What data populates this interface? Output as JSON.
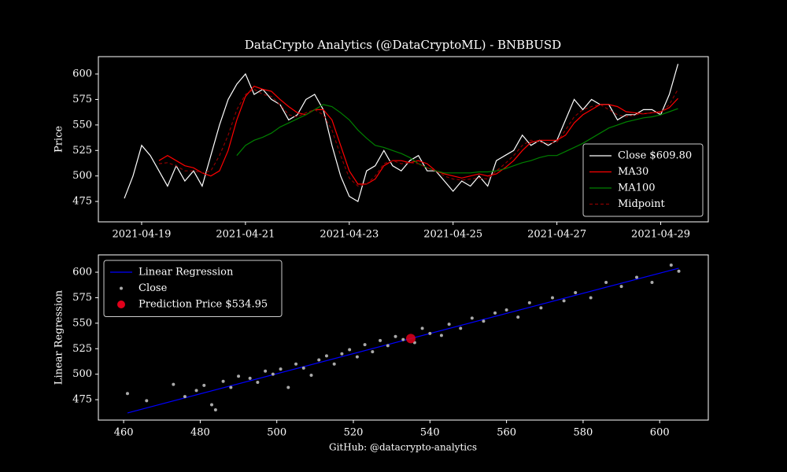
{
  "chart_data": [
    {
      "type": "line",
      "title": "DataCrypto Analytics (@DataCryptoML) - BNBBUSD",
      "y_label": "Price",
      "x": [
        "2021-04-18 16:00",
        "2021-04-18 20:00",
        "2021-04-19 00:00",
        "2021-04-19 04:00",
        "2021-04-19 08:00",
        "2021-04-19 12:00",
        "2021-04-19 16:00",
        "2021-04-19 20:00",
        "2021-04-20 00:00",
        "2021-04-20 04:00",
        "2021-04-20 08:00",
        "2021-04-20 12:00",
        "2021-04-20 16:00",
        "2021-04-20 20:00",
        "2021-04-21 00:00",
        "2021-04-21 04:00",
        "2021-04-21 08:00",
        "2021-04-21 12:00",
        "2021-04-21 16:00",
        "2021-04-21 20:00",
        "2021-04-22 00:00",
        "2021-04-22 04:00",
        "2021-04-22 08:00",
        "2021-04-22 12:00",
        "2021-04-22 16:00",
        "2021-04-22 20:00",
        "2021-04-23 00:00",
        "2021-04-23 04:00",
        "2021-04-23 08:00",
        "2021-04-23 12:00",
        "2021-04-23 16:00",
        "2021-04-23 20:00",
        "2021-04-24 00:00",
        "2021-04-24 04:00",
        "2021-04-24 08:00",
        "2021-04-24 12:00",
        "2021-04-24 16:00",
        "2021-04-24 20:00",
        "2021-04-25 00:00",
        "2021-04-25 04:00",
        "2021-04-25 08:00",
        "2021-04-25 12:00",
        "2021-04-25 16:00",
        "2021-04-25 20:00",
        "2021-04-26 00:00",
        "2021-04-26 04:00",
        "2021-04-26 08:00",
        "2021-04-26 12:00",
        "2021-04-26 16:00",
        "2021-04-26 20:00",
        "2021-04-27 00:00",
        "2021-04-27 04:00",
        "2021-04-27 08:00",
        "2021-04-27 12:00",
        "2021-04-27 16:00",
        "2021-04-27 20:00",
        "2021-04-28 00:00",
        "2021-04-28 04:00",
        "2021-04-28 08:00",
        "2021-04-28 12:00",
        "2021-04-28 16:00",
        "2021-04-28 20:00",
        "2021-04-29 00:00",
        "2021-04-29 04:00",
        "2021-04-29 08:00"
      ],
      "series": [
        {
          "name": "Close $609.80",
          "color": "#ffffff",
          "values": [
            478,
            500,
            530,
            520,
            505,
            490,
            510,
            495,
            505,
            490,
            520,
            550,
            575,
            590,
            600,
            580,
            585,
            575,
            570,
            555,
            560,
            575,
            580,
            565,
            530,
            500,
            480,
            475,
            505,
            510,
            525,
            510,
            505,
            515,
            520,
            505,
            505,
            495,
            485,
            495,
            490,
            500,
            490,
            515,
            520,
            525,
            540,
            530,
            535,
            530,
            535,
            555,
            575,
            565,
            575,
            570,
            570,
            555,
            560,
            560,
            565,
            565,
            560,
            580,
            609.8
          ]
        },
        {
          "name": "MA30",
          "color": "#ff0000",
          "values": [
            null,
            null,
            null,
            null,
            515,
            520,
            515,
            510,
            508,
            503,
            500,
            505,
            525,
            555,
            578,
            588,
            585,
            583,
            575,
            568,
            562,
            560,
            565,
            565,
            555,
            530,
            505,
            492,
            492,
            497,
            510,
            515,
            515,
            513,
            515,
            512,
            505,
            502,
            500,
            498,
            500,
            502,
            500,
            502,
            508,
            515,
            525,
            533,
            535,
            535,
            535,
            540,
            552,
            560,
            565,
            570,
            570,
            568,
            563,
            562,
            561,
            562,
            563,
            567,
            576
          ]
        },
        {
          "name": "MA100",
          "color": "#008000",
          "values": [
            null,
            null,
            null,
            null,
            null,
            null,
            null,
            null,
            null,
            null,
            null,
            null,
            null,
            520,
            530,
            535,
            538,
            542,
            548,
            552,
            556,
            560,
            565,
            570,
            568,
            562,
            555,
            545,
            537,
            530,
            528,
            525,
            522,
            518,
            512,
            508,
            505,
            503,
            503,
            503,
            503,
            504,
            504,
            505,
            507,
            510,
            513,
            515,
            518,
            520,
            520,
            524,
            528,
            532,
            537,
            542,
            547,
            550,
            553,
            555,
            557,
            558,
            560,
            563,
            566
          ]
        },
        {
          "name": "Midpoint",
          "color": "#8b0000",
          "dashed": true,
          "values": [
            null,
            null,
            null,
            null,
            512,
            513,
            510,
            505,
            505,
            503,
            505,
            520,
            540,
            565,
            580,
            585,
            580,
            578,
            570,
            560,
            558,
            562,
            565,
            560,
            545,
            520,
            498,
            490,
            492,
            500,
            512,
            515,
            512,
            513,
            512,
            508,
            505,
            500,
            497,
            496,
            497,
            498,
            497,
            505,
            512,
            520,
            530,
            535,
            533,
            532,
            533,
            545,
            558,
            565,
            568,
            570,
            565,
            560,
            558,
            560,
            561,
            562,
            562,
            570,
            585
          ]
        }
      ],
      "xlim": [
        "2021-04-18 04:00",
        "2021-04-29 22:00"
      ],
      "xticks": [
        "2021-04-19",
        "2021-04-21",
        "2021-04-23",
        "2021-04-25",
        "2021-04-27",
        "2021-04-29"
      ],
      "ylim": [
        455,
        617
      ],
      "yticks": [
        475,
        500,
        525,
        550,
        575,
        600
      ],
      "legend": "lower right"
    },
    {
      "type": "scatter",
      "y_label": "Linear Regression",
      "footer": "GitHub: @datacrypto-analytics",
      "series": [
        {
          "name": "Linear Regression",
          "kind": "line",
          "color": "#0000ff",
          "x": [
            461,
            605
          ],
          "values": [
            462,
            604
          ]
        },
        {
          "name": "Close",
          "kind": "scatter",
          "color": "#aaaaaa",
          "size": 2,
          "x": [
            461,
            466,
            473,
            476,
            479,
            481,
            483,
            484,
            486,
            488,
            490,
            493,
            495,
            497,
            499,
            501,
            503,
            505,
            507,
            509,
            511,
            513,
            515,
            517,
            519,
            521,
            523,
            525,
            527,
            529,
            531,
            533,
            536,
            538,
            540,
            543,
            545,
            548,
            551,
            554,
            557,
            560,
            563,
            566,
            569,
            572,
            575,
            578,
            582,
            586,
            590,
            594,
            598,
            603,
            605
          ],
          "values": [
            481,
            474,
            490,
            478,
            484,
            489,
            470,
            465,
            493,
            487,
            498,
            496,
            492,
            503,
            500,
            505,
            487,
            510,
            506,
            499,
            514,
            518,
            510,
            520,
            524,
            517,
            529,
            522,
            533,
            528,
            537,
            534,
            531,
            545,
            540,
            538,
            549,
            545,
            555,
            552,
            560,
            563,
            556,
            570,
            565,
            575,
            572,
            580,
            575,
            590,
            586,
            595,
            590,
            607,
            601
          ]
        },
        {
          "name": "Prediction Price $534.95",
          "kind": "scatter",
          "color": "#e0001a",
          "size": 6,
          "x": [
            535
          ],
          "values": [
            534.95
          ]
        }
      ],
      "xlim": [
        453.4,
        612.7
      ],
      "xticks": [
        460,
        480,
        500,
        520,
        540,
        560,
        580,
        600
      ],
      "ylim": [
        455,
        617
      ],
      "yticks": [
        475,
        500,
        525,
        550,
        575,
        600
      ],
      "legend": "upper left"
    }
  ]
}
